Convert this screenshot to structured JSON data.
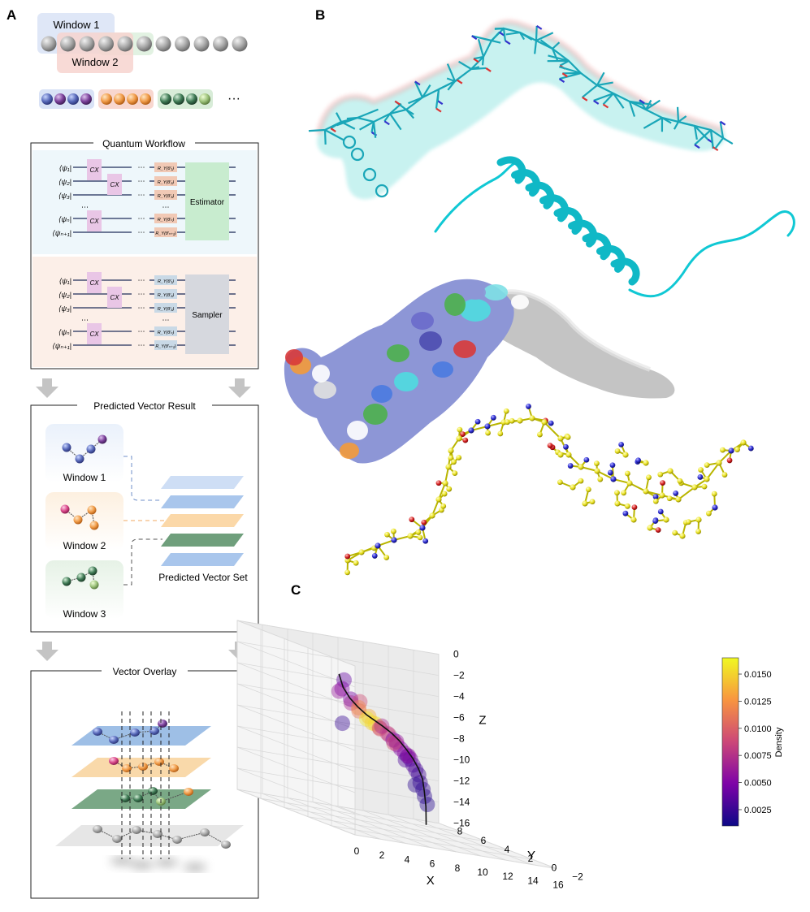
{
  "panels": {
    "a": "A",
    "b": "B",
    "c": "C"
  },
  "windowing": {
    "window1": "Window 1",
    "window2": "Window 2",
    "ellipsis": "···"
  },
  "quantum": {
    "title": "Quantum Workflow",
    "estimator": "Estimator",
    "sampler": "Sampler",
    "cx": "CX",
    "kets": [
      "⟨ψ₁|",
      "⟨ψ₂|",
      "⟨ψ₃|",
      "⟨ψₙ|",
      "⟨ψₙ₊₁|"
    ],
    "gates": [
      "R_Y(θ′₁)",
      "R_Y(θ′₂)",
      "R_Y(θ′₃)",
      "R_Y(θ′ₙ)",
      "R_Y(θ′ₙ₊₁)"
    ],
    "dots": "⋯"
  },
  "predicted": {
    "title": "Predicted Vector Result",
    "windows": [
      "Window 1",
      "Window 2",
      "Window 3"
    ],
    "set_label": "Predicted Vector Set"
  },
  "overlay": {
    "title": "Vector Overlay"
  },
  "colors": {
    "blue": "#7f9fd8",
    "orange": "#f3bf7a",
    "green": "#5f9a73",
    "gray": "#cfcfcf",
    "estimator": "#c8eccf",
    "sampler": "#d6d8de",
    "cxgate": "#e9c6e6",
    "estimator_bg": "#eef7fb",
    "sampler_bg": "#fcefe8"
  },
  "chart_data": {
    "type": "scatter",
    "title": "",
    "xlabel": "X",
    "ylabel": "Y",
    "zlabel": "Z",
    "x_ticks": [
      "0",
      "2",
      "4",
      "6",
      "8",
      "10",
      "12",
      "14",
      "16"
    ],
    "y_ticks": [
      "−2",
      "0",
      "2",
      "4",
      "6",
      "8"
    ],
    "z_ticks": [
      "0",
      "−2",
      "−4",
      "−6",
      "−8",
      "−10",
      "−12",
      "−14",
      "−16"
    ],
    "xlim": [
      0,
      16
    ],
    "ylim": [
      -2,
      8
    ],
    "zlim": [
      -16,
      0
    ],
    "colorbar": {
      "label": "Density",
      "ticks": [
        "0.0150",
        "0.0125",
        "0.0100",
        "0.0075",
        "0.0050",
        "0.0025"
      ],
      "min": 0.001,
      "max": 0.0165
    },
    "points": [
      [
        0.4,
        -0.5,
        -6.0,
        0.0024
      ],
      [
        1.0,
        0.0,
        -2.0,
        0.004
      ],
      [
        1.4,
        0.6,
        -3.0,
        0.005
      ],
      [
        1.9,
        0.4,
        -3.8,
        0.0045
      ],
      [
        2.5,
        1.0,
        -4.3,
        0.007
      ],
      [
        3.0,
        0.8,
        -4.0,
        0.009
      ],
      [
        3.4,
        1.3,
        -5.0,
        0.011
      ],
      [
        3.9,
        1.0,
        -5.3,
        0.0135
      ],
      [
        4.3,
        1.6,
        -5.7,
        0.016
      ],
      [
        4.8,
        1.4,
        -6.0,
        0.0155
      ],
      [
        5.1,
        2.0,
        -6.1,
        0.015
      ],
      [
        5.5,
        1.8,
        -6.4,
        0.0105
      ],
      [
        6.0,
        2.3,
        -6.6,
        0.0095
      ],
      [
        6.5,
        2.2,
        -6.9,
        0.0085
      ],
      [
        7.0,
        2.6,
        -7.1,
        0.008
      ],
      [
        7.5,
        2.5,
        -7.6,
        0.006
      ],
      [
        8.0,
        3.0,
        -8.0,
        0.0065
      ],
      [
        8.5,
        3.2,
        -8.4,
        0.005
      ],
      [
        9.0,
        3.4,
        -8.8,
        0.0055
      ],
      [
        9.5,
        3.7,
        -9.1,
        0.004
      ],
      [
        10.0,
        4.0,
        -9.4,
        0.0045
      ],
      [
        10.5,
        4.3,
        -10.0,
        0.0035
      ],
      [
        11.0,
        4.6,
        -10.5,
        0.003
      ],
      [
        11.6,
        5.0,
        -11.0,
        0.0028
      ],
      [
        12.0,
        5.3,
        -11.8,
        0.0026
      ],
      [
        12.6,
        5.7,
        -12.5,
        0.0022
      ],
      [
        13.0,
        6.0,
        -13.2,
        0.002
      ],
      [
        13.5,
        6.3,
        -14.0,
        0.0018
      ],
      [
        2.0,
        1.5,
        -3.5,
        0.006
      ],
      [
        4.5,
        2.5,
        -5.0,
        0.012
      ],
      [
        6.8,
        3.0,
        -6.5,
        0.007
      ],
      [
        9.2,
        4.6,
        -8.0,
        0.0048
      ],
      [
        11.3,
        5.8,
        -10.0,
        0.0032
      ],
      [
        13.2,
        7.0,
        -12.5,
        0.002
      ],
      [
        5.8,
        0.9,
        -7.4,
        0.0092
      ],
      [
        7.8,
        1.8,
        -8.6,
        0.0058
      ]
    ],
    "trajectory": [
      [
        0.6,
        0.0,
        -1.5
      ],
      [
        1.3,
        0.4,
        -2.8
      ],
      [
        2.2,
        0.8,
        -3.8
      ],
      [
        3.2,
        1.2,
        -4.6
      ],
      [
        4.2,
        1.5,
        -5.3
      ],
      [
        5.2,
        1.9,
        -5.8
      ],
      [
        6.2,
        2.3,
        -6.3
      ],
      [
        7.2,
        2.6,
        -6.9
      ],
      [
        8.2,
        3.0,
        -7.6
      ],
      [
        9.2,
        3.5,
        -8.4
      ],
      [
        10.2,
        4.0,
        -9.3
      ],
      [
        11.2,
        4.6,
        -10.3
      ],
      [
        12.1,
        5.2,
        -11.4
      ],
      [
        12.8,
        5.8,
        -12.7
      ],
      [
        13.3,
        6.2,
        -14.2
      ],
      [
        13.6,
        6.5,
        -16.0
      ]
    ]
  }
}
